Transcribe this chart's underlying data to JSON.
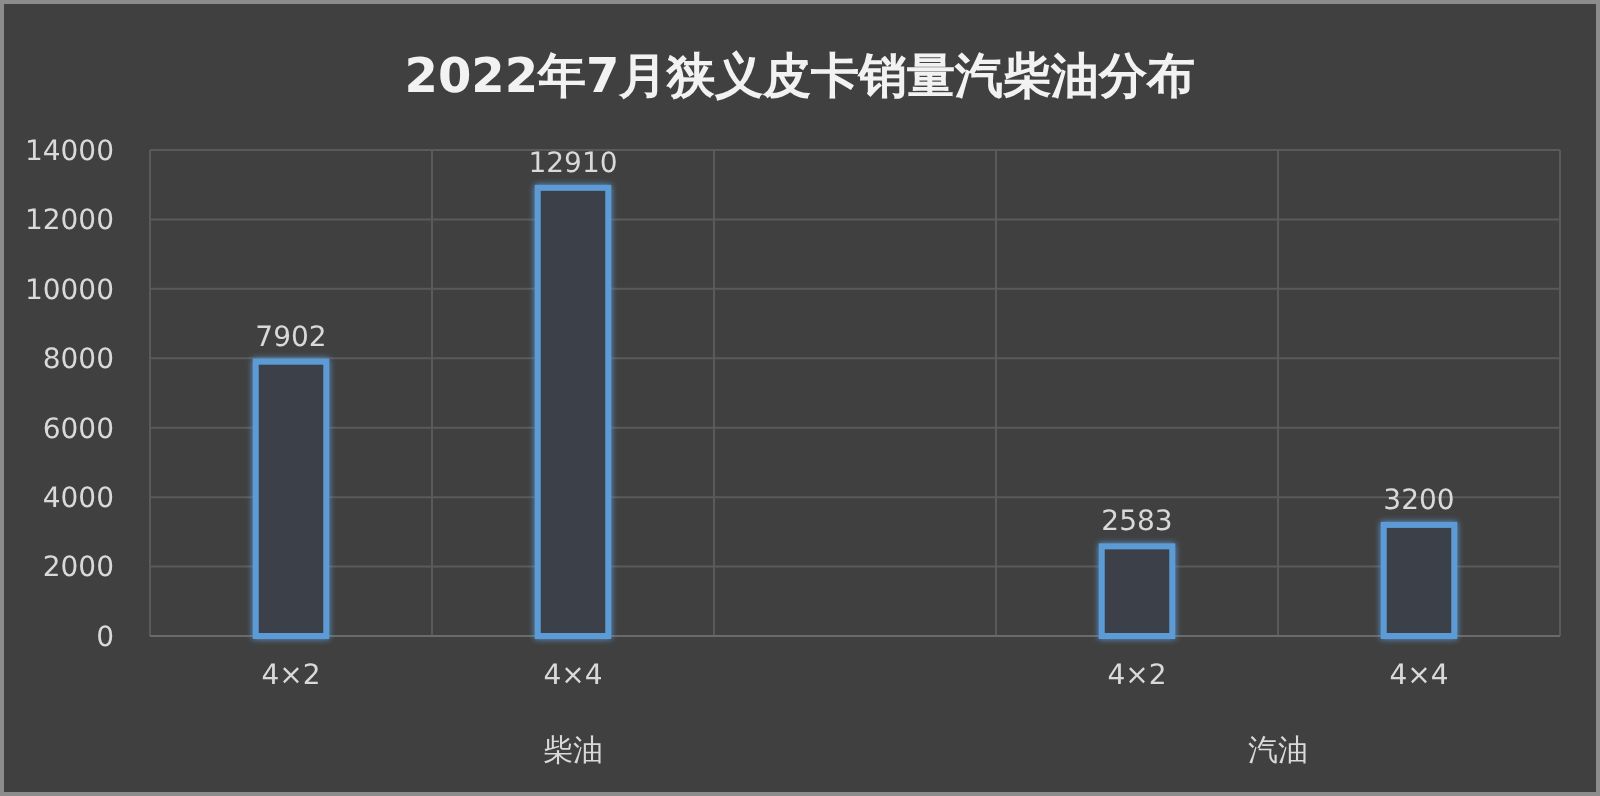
{
  "chart_data": {
    "type": "bar",
    "title": "2022年7月狭义皮卡销量汽柴油分布",
    "categories": [
      "4×2",
      "4×4",
      null,
      "4×2",
      "4×4"
    ],
    "values": [
      7902,
      12910,
      null,
      2583,
      3200
    ],
    "color": "#5b9bd5",
    "ylim": [
      0,
      14000
    ],
    "yticks": [
      0,
      2000,
      4000,
      6000,
      8000,
      10000,
      12000,
      14000
    ],
    "grid": true,
    "data_labels": true,
    "annotations": [
      "柴油",
      "汽油"
    ]
  }
}
